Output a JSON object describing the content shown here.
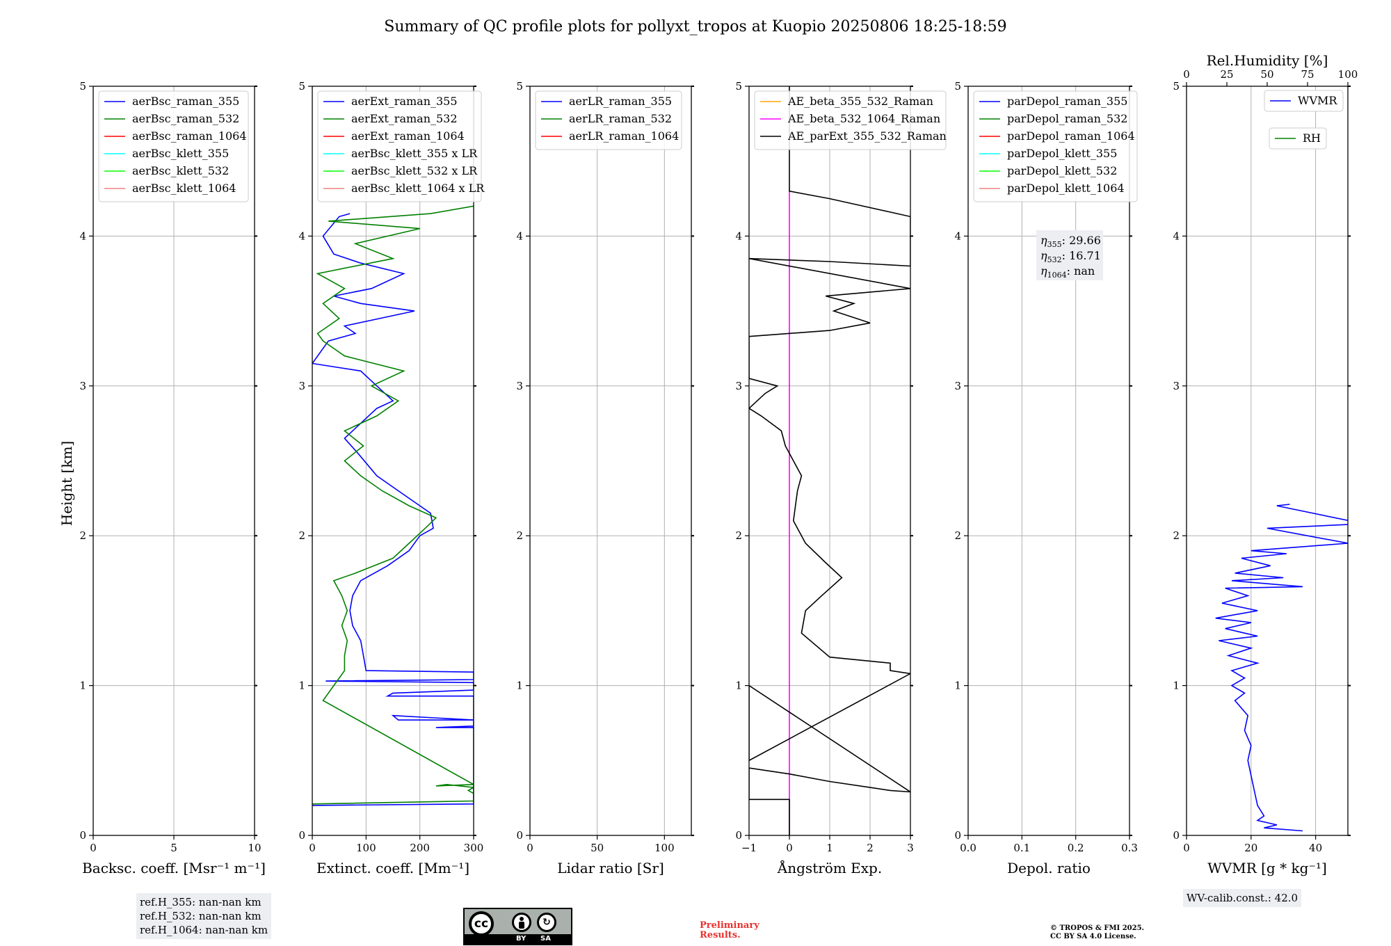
{
  "title": "Summary of QC profile plots for pollyxt_tropos at Kuopio 20250806 18:25-18:59",
  "ylabel": "Height [km]",
  "chart_data": [
    {
      "type": "line",
      "xlabel": "Backsc. coeff. [Msr⁻¹ m⁻¹]",
      "xlim": [
        0,
        10
      ],
      "xticks": [
        "0",
        "5",
        "10"
      ],
      "ylim": [
        0,
        5
      ],
      "yticks": [
        "0",
        "1",
        "2",
        "3",
        "4",
        "5"
      ],
      "grid": true,
      "legend_position": "top-left",
      "series": [
        {
          "name": "aerBsc_raman_355",
          "color": "#0000ff",
          "points": []
        },
        {
          "name": "aerBsc_raman_532",
          "color": "#008000",
          "points": []
        },
        {
          "name": "aerBsc_raman_1064",
          "color": "#ff0000",
          "points": []
        },
        {
          "name": "aerBsc_klett_355",
          "color": "#00ffff",
          "points": []
        },
        {
          "name": "aerBsc_klett_532",
          "color": "#00ff00",
          "points": []
        },
        {
          "name": "aerBsc_klett_1064",
          "color": "#f08080",
          "points": []
        }
      ]
    },
    {
      "type": "line",
      "xlabel": "Extinct. coeff. [Mm⁻¹]",
      "xlim": [
        0,
        300
      ],
      "xticks": [
        "0",
        "100",
        "200",
        "300"
      ],
      "ylim": [
        0,
        5
      ],
      "yticks": [
        "0",
        "1",
        "2",
        "3",
        "4",
        "5"
      ],
      "grid": true,
      "legend_position": "top-left",
      "series": [
        {
          "name": "aerExt_raman_355",
          "color": "#0000ff",
          "points": [
            [
              0,
              0.2
            ],
            [
              300,
              0.21
            ],
            [
              300,
              0.72
            ],
            [
              230,
              0.72
            ],
            [
              300,
              0.73
            ],
            [
              300,
              0.77
            ],
            [
              160,
              0.77
            ],
            [
              150,
              0.8
            ],
            [
              300,
              0.77
            ],
            [
              300,
              0.93
            ],
            [
              140,
              0.93
            ],
            [
              150,
              0.95
            ],
            [
              300,
              0.97
            ],
            [
              300,
              1.02
            ],
            [
              25,
              1.03
            ],
            [
              300,
              1.04
            ],
            [
              300,
              1.09
            ],
            [
              100,
              1.1
            ],
            [
              95,
              1.2
            ],
            [
              90,
              1.3
            ],
            [
              75,
              1.4
            ],
            [
              70,
              1.5
            ],
            [
              75,
              1.6
            ],
            [
              90,
              1.7
            ],
            [
              140,
              1.8
            ],
            [
              180,
              1.9
            ],
            [
              200,
              2.0
            ],
            [
              225,
              2.05
            ],
            [
              220,
              2.15
            ],
            [
              200,
              2.2
            ],
            [
              160,
              2.3
            ],
            [
              120,
              2.4
            ],
            [
              85,
              2.55
            ],
            [
              60,
              2.65
            ],
            [
              90,
              2.75
            ],
            [
              120,
              2.85
            ],
            [
              150,
              2.9
            ],
            [
              120,
              3.0
            ],
            [
              90,
              3.1
            ],
            [
              0,
              3.15
            ],
            [
              30,
              3.3
            ],
            [
              80,
              3.35
            ],
            [
              60,
              3.4
            ],
            [
              190,
              3.5
            ],
            [
              90,
              3.55
            ],
            [
              40,
              3.6
            ],
            [
              110,
              3.65
            ],
            [
              170,
              3.75
            ],
            [
              90,
              3.82
            ],
            [
              40,
              3.88
            ],
            [
              20,
              4.0
            ],
            [
              50,
              4.13
            ],
            [
              70,
              4.15
            ]
          ]
        },
        {
          "name": "aerExt_raman_532",
          "color": "#008000",
          "points": [
            [
              0,
              0.21
            ],
            [
              300,
              0.23
            ],
            [
              300,
              0.28
            ],
            [
              290,
              0.3
            ],
            [
              300,
              0.32
            ],
            [
              250,
              0.34
            ],
            [
              230,
              0.33
            ],
            [
              300,
              0.34
            ],
            [
              20,
              0.9
            ],
            [
              40,
              1.0
            ],
            [
              60,
              1.1
            ],
            [
              60,
              1.2
            ],
            [
              65,
              1.3
            ],
            [
              55,
              1.4
            ],
            [
              65,
              1.5
            ],
            [
              55,
              1.6
            ],
            [
              40,
              1.7
            ],
            [
              80,
              1.75
            ],
            [
              150,
              1.85
            ],
            [
              180,
              1.95
            ],
            [
              210,
              2.05
            ],
            [
              230,
              2.12
            ],
            [
              180,
              2.2
            ],
            [
              130,
              2.3
            ],
            [
              90,
              2.4
            ],
            [
              60,
              2.5
            ],
            [
              95,
              2.6
            ],
            [
              60,
              2.7
            ],
            [
              120,
              2.8
            ],
            [
              160,
              2.9
            ],
            [
              110,
              3.0
            ],
            [
              170,
              3.1
            ],
            [
              60,
              3.2
            ],
            [
              20,
              3.3
            ],
            [
              10,
              3.35
            ],
            [
              50,
              3.45
            ],
            [
              20,
              3.55
            ],
            [
              60,
              3.65
            ],
            [
              10,
              3.75
            ],
            [
              150,
              3.85
            ],
            [
              80,
              3.95
            ],
            [
              200,
              4.05
            ],
            [
              30,
              4.1
            ],
            [
              220,
              4.15
            ],
            [
              300,
              4.2
            ]
          ]
        },
        {
          "name": "aerExt_raman_1064",
          "color": "#ff0000",
          "points": []
        },
        {
          "name": "aerBsc_klett_355 x LR",
          "color": "#00ffff",
          "points": []
        },
        {
          "name": "aerBsc_klett_532 x LR",
          "color": "#00ff00",
          "points": []
        },
        {
          "name": "aerBsc_klett_1064 x LR",
          "color": "#f08080",
          "points": []
        }
      ]
    },
    {
      "type": "line",
      "xlabel": "Lidar ratio [Sr]",
      "xlim": [
        0,
        120
      ],
      "xticks": [
        "0",
        "50",
        "100"
      ],
      "ylim": [
        0,
        5
      ],
      "yticks": [
        "0",
        "1",
        "2",
        "3",
        "4",
        "5"
      ],
      "grid": true,
      "legend_position": "top-left",
      "series": [
        {
          "name": "aerLR_raman_355",
          "color": "#0000ff",
          "points": []
        },
        {
          "name": "aerLR_raman_532",
          "color": "#008000",
          "points": []
        },
        {
          "name": "aerLR_raman_1064",
          "color": "#ff0000",
          "points": []
        }
      ]
    },
    {
      "type": "line",
      "xlabel": "Ångström Exp.",
      "xlim": [
        -1,
        3
      ],
      "xticks": [
        "−1",
        "0",
        "1",
        "2",
        "3"
      ],
      "ylim": [
        0,
        5
      ],
      "yticks": [
        "0",
        "1",
        "2",
        "3",
        "4",
        "5"
      ],
      "grid": true,
      "legend_position": "top-left",
      "series": [
        {
          "name": "AE_beta_355_532_Raman",
          "color": "#ffa500",
          "points": []
        },
        {
          "name": "AE_beta_532_1064_Raman",
          "color": "#ff00ff",
          "points": [
            [
              0,
              0
            ],
            [
              0,
              4.3
            ]
          ]
        },
        {
          "name": "AE_parExt_355_532_Raman",
          "color": "#000000",
          "points": [
            [
              0,
              0
            ],
            [
              0,
              0.24
            ],
            [
              -1,
              0.24
            ],
            [
              -1,
              0.45
            ],
            [
              0,
              0.41
            ],
            [
              1,
              0.36
            ],
            [
              2,
              0.32
            ],
            [
              2.5,
              0.3
            ],
            [
              3,
              0.29
            ],
            [
              -1,
              1.0
            ],
            [
              -1,
              0.5
            ],
            [
              3,
              1.08
            ],
            [
              2.5,
              1.1
            ],
            [
              2.5,
              1.15
            ],
            [
              1,
              1.19
            ],
            [
              0.3,
              1.35
            ],
            [
              0.4,
              1.5
            ],
            [
              0.8,
              1.6
            ],
            [
              1.3,
              1.72
            ],
            [
              0.9,
              1.82
            ],
            [
              0.4,
              1.95
            ],
            [
              0.1,
              2.1
            ],
            [
              0.2,
              2.3
            ],
            [
              0.3,
              2.4
            ],
            [
              0.1,
              2.5
            ],
            [
              -0.1,
              2.6
            ],
            [
              -0.2,
              2.7
            ],
            [
              -0.7,
              2.8
            ],
            [
              -1,
              2.85
            ],
            [
              -0.6,
              2.95
            ],
            [
              -0.3,
              3.0
            ],
            [
              -1,
              3.05
            ],
            [
              -1,
              3.33
            ],
            [
              1,
              3.37
            ],
            [
              2,
              3.42
            ],
            [
              1.1,
              3.5
            ],
            [
              1.6,
              3.55
            ],
            [
              0.9,
              3.6
            ],
            [
              3,
              3.65
            ],
            [
              -1,
              3.85
            ],
            [
              1,
              3.83
            ],
            [
              3,
              3.8
            ],
            [
              3,
              4.13
            ],
            [
              1,
              4.25
            ],
            [
              0,
              4.3
            ],
            [
              0,
              5
            ]
          ]
        }
      ]
    },
    {
      "type": "line",
      "xlabel": "Depol. ratio",
      "xlim": [
        0,
        0.3
      ],
      "xticks": [
        "0.0",
        "0.1",
        "0.2",
        "0.3"
      ],
      "ylim": [
        0,
        5
      ],
      "yticks": [
        "0",
        "1",
        "2",
        "3",
        "4",
        "5"
      ],
      "grid": true,
      "legend_position": "top-left",
      "series": [
        {
          "name": "parDepol_raman_355",
          "color": "#0000ff",
          "points": []
        },
        {
          "name": "parDepol_raman_532",
          "color": "#008000",
          "points": []
        },
        {
          "name": "parDepol_raman_1064",
          "color": "#ff0000",
          "points": []
        },
        {
          "name": "parDepol_klett_355",
          "color": "#00ffff",
          "points": []
        },
        {
          "name": "parDepol_klett_532",
          "color": "#00ff00",
          "points": []
        },
        {
          "name": "parDepol_klett_1064",
          "color": "#f08080",
          "points": []
        }
      ],
      "annotation": {
        "eta355": "29.66",
        "eta532": "16.71",
        "eta1064": "nan"
      }
    },
    {
      "type": "line",
      "xlabel": "WVMR [g * kg⁻¹]",
      "xlim": [
        0,
        50
      ],
      "xticks": [
        "0",
        "20",
        "40"
      ],
      "top_xlabel": "Rel.Humidity [%]",
      "top_xlim": [
        0,
        100
      ],
      "top_xticks": [
        "0",
        "25",
        "50",
        "75",
        "100"
      ],
      "ylim": [
        0,
        5
      ],
      "yticks": [
        "0",
        "1",
        "2",
        "3",
        "4",
        "5"
      ],
      "grid": true,
      "legend_position": "top-right",
      "series": [
        {
          "name": "WVMR",
          "color": "#0000ff",
          "points": [
            [
              36,
              0.03
            ],
            [
              24,
              0.05
            ],
            [
              28,
              0.07
            ],
            [
              22,
              0.1
            ],
            [
              24,
              0.13
            ],
            [
              22,
              0.2
            ],
            [
              21,
              0.3
            ],
            [
              20,
              0.4
            ],
            [
              19,
              0.5
            ],
            [
              20,
              0.6
            ],
            [
              18,
              0.7
            ],
            [
              19,
              0.8
            ],
            [
              15,
              0.9
            ],
            [
              18,
              0.95
            ],
            [
              14,
              1.0
            ],
            [
              18,
              1.05
            ],
            [
              14,
              1.1
            ],
            [
              22,
              1.15
            ],
            [
              13,
              1.2
            ],
            [
              20,
              1.25
            ],
            [
              10,
              1.3
            ],
            [
              22,
              1.33
            ],
            [
              12,
              1.38
            ],
            [
              20,
              1.42
            ],
            [
              9,
              1.45
            ],
            [
              22,
              1.5
            ],
            [
              11,
              1.55
            ],
            [
              19,
              1.6
            ],
            [
              12,
              1.65
            ],
            [
              36,
              1.66
            ],
            [
              14,
              1.7
            ],
            [
              30,
              1.72
            ],
            [
              15,
              1.75
            ],
            [
              26,
              1.8
            ],
            [
              17,
              1.85
            ],
            [
              31,
              1.88
            ],
            [
              20,
              1.9
            ],
            [
              50,
              1.95
            ],
            [
              25,
              2.05
            ],
            [
              55,
              2.08
            ],
            [
              28,
              2.2
            ],
            [
              32,
              2.21
            ]
          ]
        },
        {
          "name": "RH",
          "color": "#008000",
          "points": []
        }
      ]
    }
  ],
  "footer": {
    "ref_h_355": "ref.H_355: nan-nan km",
    "ref_h_532": "ref.H_532: nan-nan km",
    "ref_h_1064": "ref.H_1064: nan-nan km",
    "wv_calib": "WV-calib.const.: 42.0",
    "cc_by": "BY",
    "cc_sa": "SA",
    "preliminary_line1": "Preliminary",
    "preliminary_line2": "Results.",
    "copyright_line1": "© TROPOS & FMI 2025.",
    "copyright_line2": "CC BY SA 4.0 License."
  }
}
